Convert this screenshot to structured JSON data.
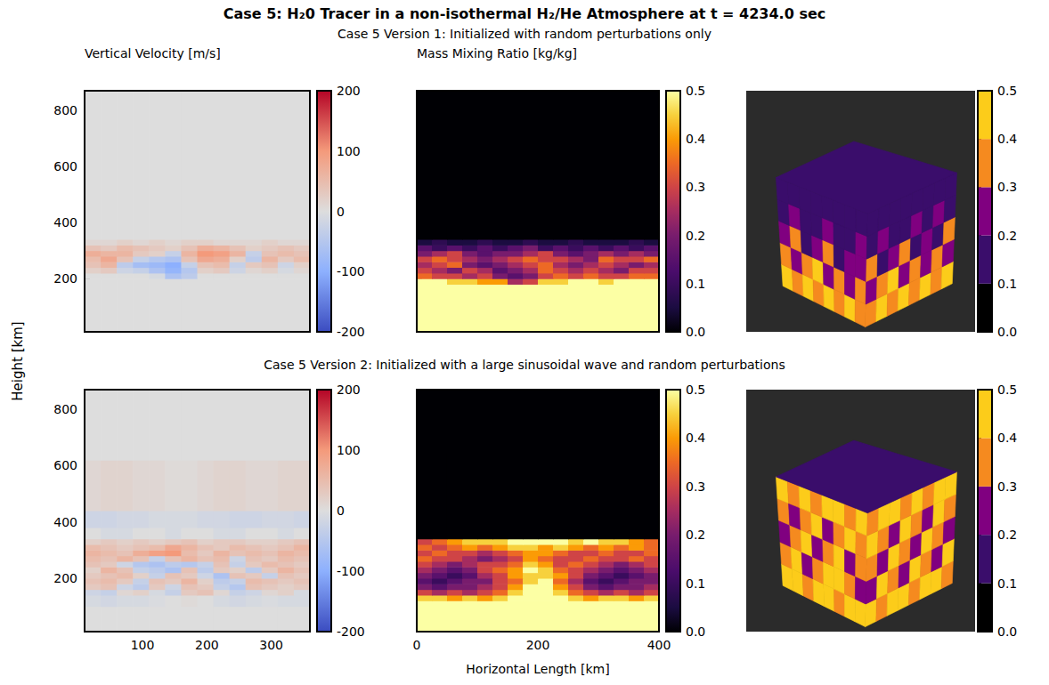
{
  "title": "Case 5: H₂0 Tracer in a non-isothermal H₂/He Atmosphere at t = 4234.0 sec",
  "row_titles": [
    "Case 5 Version 1: Initialized with random perturbations only",
    "Case 5 Version 2: Initialized with a large sinusoidal wave and random perturbations"
  ],
  "x_label": "Horizontal Length [km]",
  "y_label": "Height [km]",
  "chart_data": [
    {
      "type": "heatmap",
      "title": "Vertical Velocity [m/s]",
      "tick_labels": "y",
      "xlim": [
        10,
        360
      ],
      "ylim": [
        10,
        870
      ],
      "xticks": [
        100,
        200,
        300
      ],
      "yticks": [
        200,
        400,
        600,
        800
      ],
      "x_edges": [
        10,
        35,
        60,
        85,
        110,
        135,
        160,
        185,
        210,
        235,
        260,
        285,
        310,
        335,
        360
      ],
      "y_edges": [
        10,
        200,
        220,
        240,
        260,
        280,
        300,
        320,
        340,
        870
      ],
      "cells": [
        [
          0,
          0,
          0,
          0,
          0,
          0,
          0,
          0,
          0,
          0,
          0,
          0,
          0,
          0
        ],
        [
          0,
          0,
          0,
          0,
          -10,
          -60,
          -40,
          0,
          0,
          0,
          0,
          0,
          0,
          0
        ],
        [
          20,
          30,
          -20,
          -30,
          -60,
          -90,
          -50,
          20,
          30,
          -20,
          10,
          20,
          -10,
          10
        ],
        [
          40,
          60,
          -40,
          -70,
          -80,
          -100,
          -30,
          40,
          50,
          -30,
          30,
          40,
          -20,
          20
        ],
        [
          50,
          80,
          40,
          -30,
          -50,
          -60,
          40,
          80,
          70,
          20,
          -40,
          60,
          30,
          50
        ],
        [
          70,
          60,
          60,
          30,
          20,
          -30,
          60,
          100,
          90,
          60,
          -30,
          40,
          50,
          40
        ],
        [
          40,
          30,
          50,
          40,
          30,
          20,
          40,
          70,
          60,
          40,
          20,
          30,
          40,
          30
        ],
        [
          10,
          10,
          20,
          10,
          20,
          10,
          20,
          20,
          10,
          10,
          10,
          20,
          10,
          10
        ],
        [
          0,
          0,
          0,
          0,
          0,
          0,
          0,
          0,
          0,
          0,
          0,
          0,
          0,
          0
        ]
      ],
      "colorbar": {
        "range": [
          -200,
          200
        ],
        "ticks": [
          -200,
          -100,
          0,
          100,
          200
        ],
        "color": "coolwarm"
      }
    },
    {
      "type": "heatmap",
      "title": "Mass Mixing Ratio [kg/kg]",
      "tick_labels": false,
      "xlim": [
        0,
        400
      ],
      "ylim": [
        10,
        870
      ],
      "xticks": [
        0,
        200,
        400
      ],
      "yticks": [
        200,
        400,
        600,
        800
      ],
      "x_edges": [
        0,
        25,
        50,
        75,
        100,
        125,
        150,
        175,
        200,
        225,
        250,
        275,
        300,
        325,
        350,
        375,
        400
      ],
      "y_edges": [
        10,
        180,
        200,
        220,
        240,
        260,
        280,
        300,
        320,
        340,
        870
      ],
      "cells": [
        [
          0.5,
          0.5,
          0.5,
          0.5,
          0.5,
          0.5,
          0.5,
          0.5,
          0.5,
          0.5,
          0.5,
          0.5,
          0.5,
          0.5,
          0.5,
          0.5
        ],
        [
          0.5,
          0.5,
          0.45,
          0.45,
          0.4,
          0.4,
          0.25,
          0.3,
          0.45,
          0.45,
          0.5,
          0.5,
          0.45,
          0.5,
          0.5,
          0.5
        ],
        [
          0.35,
          0.3,
          0.3,
          0.25,
          0.3,
          0.2,
          0.15,
          0.2,
          0.3,
          0.35,
          0.3,
          0.35,
          0.3,
          0.3,
          0.35,
          0.35
        ],
        [
          0.3,
          0.25,
          0.2,
          0.3,
          0.25,
          0.15,
          0.2,
          0.25,
          0.35,
          0.3,
          0.25,
          0.3,
          0.25,
          0.2,
          0.3,
          0.3
        ],
        [
          0.25,
          0.3,
          0.35,
          0.2,
          0.15,
          0.2,
          0.25,
          0.3,
          0.35,
          0.25,
          0.2,
          0.25,
          0.3,
          0.25,
          0.2,
          0.25
        ],
        [
          0.3,
          0.35,
          0.3,
          0.25,
          0.2,
          0.25,
          0.3,
          0.35,
          0.3,
          0.3,
          0.25,
          0.2,
          0.35,
          0.3,
          0.3,
          0.35
        ],
        [
          0.2,
          0.25,
          0.3,
          0.2,
          0.15,
          0.2,
          0.2,
          0.25,
          0.3,
          0.2,
          0.15,
          0.2,
          0.25,
          0.2,
          0.25,
          0.2
        ],
        [
          0.15,
          0.1,
          0.15,
          0.1,
          0.15,
          0.1,
          0.15,
          0.2,
          0.1,
          0.15,
          0.1,
          0.15,
          0.1,
          0.15,
          0.1,
          0.15
        ],
        [
          0.05,
          0.08,
          0.05,
          0.05,
          0.08,
          0.05,
          0.05,
          0.08,
          0.05,
          0.05,
          0.08,
          0.05,
          0.05,
          0.05,
          0.08,
          0.05
        ],
        [
          0,
          0,
          0,
          0,
          0,
          0,
          0,
          0,
          0,
          0,
          0,
          0,
          0,
          0,
          0,
          0
        ]
      ],
      "colorbar": {
        "range": [
          0,
          0.5
        ],
        "ticks": [
          {
            "value": 0,
            "label": "0.0"
          },
          0.1,
          0.2,
          0.3,
          0.4,
          0.5
        ],
        "color": "inferno"
      }
    },
    {
      "type": "volume_render",
      "top_face": 0.15,
      "left_face": [
        [
          0.45,
          0.35,
          0.45,
          0.35,
          0.45,
          0.35,
          0.45,
          0.35
        ],
        [
          0.35,
          0.25,
          0.35,
          0.45,
          0.25,
          0.35,
          0.25,
          0.35
        ],
        [
          0.25,
          0.35,
          0.15,
          0.25,
          0.35,
          0.15,
          0.25,
          0.25
        ],
        [
          0.15,
          0.25,
          0.15,
          0.15,
          0.25,
          0.15,
          0.15,
          0.25
        ],
        [
          0.15,
          0.15,
          0.15,
          0.15,
          0.15,
          0.15,
          0.15,
          0.15
        ]
      ],
      "right_face": [
        [
          0.35,
          0.45,
          0.35,
          0.45,
          0.35,
          0.45,
          0.35,
          0.45
        ],
        [
          0.25,
          0.35,
          0.45,
          0.25,
          0.35,
          0.25,
          0.35,
          0.25
        ],
        [
          0.35,
          0.15,
          0.25,
          0.35,
          0.15,
          0.25,
          0.15,
          0.35
        ],
        [
          0.15,
          0.25,
          0.15,
          0.15,
          0.25,
          0.15,
          0.25,
          0.15
        ],
        [
          0.15,
          0.15,
          0.15,
          0.15,
          0.15,
          0.15,
          0.15,
          0.15
        ]
      ],
      "colorbar": {
        "range": [
          0,
          0.5
        ],
        "ticks": [
          {
            "value": 0,
            "label": "0.0"
          },
          0.1,
          0.2,
          0.3,
          0.4,
          0.5
        ],
        "colors": [
          "#000000",
          "#3a0d6b",
          "#800080",
          "#f58a1f",
          "#fccc1a"
        ]
      }
    },
    {
      "type": "heatmap",
      "tick_labels": true,
      "xlim": [
        10,
        360
      ],
      "ylim": [
        10,
        870
      ],
      "xticks": [
        100,
        200,
        300
      ],
      "yticks": [
        200,
        400,
        600,
        800
      ],
      "x_edges": [
        10,
        35,
        60,
        85,
        110,
        135,
        160,
        185,
        210,
        235,
        260,
        285,
        310,
        335,
        360
      ],
      "y_edges": [
        10,
        100,
        140,
        160,
        180,
        200,
        220,
        240,
        260,
        280,
        300,
        320,
        340,
        380,
        440,
        620,
        870
      ],
      "cells": [
        [
          0,
          0,
          0,
          0,
          0,
          0,
          0,
          0,
          0,
          0,
          0,
          0,
          0,
          0
        ],
        [
          -10,
          -15,
          -10,
          -10,
          -5,
          0,
          5,
          0,
          -10,
          -15,
          -10,
          -5,
          -10,
          -10
        ],
        [
          -20,
          -30,
          10,
          20,
          -10,
          -30,
          30,
          40,
          10,
          -30,
          -20,
          10,
          20,
          -10
        ],
        [
          30,
          40,
          -20,
          -40,
          30,
          -20,
          40,
          30,
          -30,
          -50,
          40,
          30,
          20,
          30
        ],
        [
          40,
          50,
          30,
          -30,
          40,
          30,
          60,
          20,
          -40,
          -30,
          50,
          40,
          30,
          40
        ],
        [
          30,
          40,
          50,
          20,
          -30,
          40,
          30,
          -20,
          -60,
          40,
          30,
          -30,
          40,
          30
        ],
        [
          20,
          60,
          40,
          -30,
          -40,
          -60,
          40,
          -40,
          30,
          20,
          -40,
          30,
          60,
          40
        ],
        [
          40,
          30,
          -20,
          -50,
          -60,
          -40,
          -50,
          -30,
          40,
          -30,
          30,
          50,
          40,
          30
        ],
        [
          50,
          40,
          60,
          40,
          -30,
          40,
          60,
          40,
          50,
          -20,
          40,
          30,
          50,
          40
        ],
        [
          60,
          50,
          40,
          70,
          90,
          100,
          50,
          30,
          60,
          40,
          50,
          40,
          60,
          50
        ],
        [
          50,
          40,
          30,
          40,
          50,
          80,
          60,
          40,
          30,
          50,
          40,
          30,
          40,
          60
        ],
        [
          20,
          30,
          20,
          30,
          20,
          30,
          40,
          20,
          30,
          30,
          20,
          20,
          30,
          40
        ],
        [
          0,
          -10,
          -10,
          0,
          0,
          -10,
          0,
          0,
          -10,
          -10,
          0,
          0,
          -10,
          0
        ],
        [
          -20,
          -20,
          -15,
          -15,
          -10,
          -10,
          -10,
          -15,
          -15,
          -20,
          -20,
          -15,
          -15,
          -20
        ],
        [
          10,
          15,
          15,
          10,
          10,
          5,
          5,
          10,
          15,
          15,
          10,
          10,
          15,
          15
        ],
        [
          0,
          0,
          0,
          0,
          0,
          0,
          0,
          0,
          0,
          0,
          0,
          0,
          0,
          0
        ]
      ],
      "colorbar": {
        "range": [
          -200,
          200
        ],
        "ticks": [
          -200,
          -100,
          0,
          100,
          200
        ],
        "color": "coolwarm"
      }
    },
    {
      "type": "heatmap",
      "tick_labels": "x",
      "xlim": [
        0,
        400
      ],
      "ylim": [
        10,
        870
      ],
      "xticks": [
        0,
        200,
        400
      ],
      "yticks": [
        200,
        400,
        600,
        800
      ],
      "x_edges": [
        0,
        25,
        50,
        75,
        100,
        125,
        150,
        175,
        200,
        225,
        250,
        275,
        300,
        325,
        350,
        375,
        400
      ],
      "y_edges": [
        10,
        120,
        140,
        160,
        180,
        200,
        220,
        240,
        260,
        280,
        300,
        320,
        340,
        870
      ],
      "cells": [
        [
          0.5,
          0.5,
          0.5,
          0.5,
          0.5,
          0.5,
          0.5,
          0.5,
          0.5,
          0.5,
          0.5,
          0.5,
          0.5,
          0.5,
          0.5,
          0.5
        ],
        [
          0.45,
          0.45,
          0.4,
          0.45,
          0.4,
          0.45,
          0.5,
          0.5,
          0.5,
          0.5,
          0.45,
          0.4,
          0.45,
          0.45,
          0.4,
          0.45
        ],
        [
          0.3,
          0.25,
          0.3,
          0.25,
          0.3,
          0.35,
          0.45,
          0.5,
          0.5,
          0.45,
          0.35,
          0.3,
          0.25,
          0.3,
          0.25,
          0.3
        ],
        [
          0.2,
          0.15,
          0.2,
          0.2,
          0.25,
          0.3,
          0.4,
          0.5,
          0.5,
          0.4,
          0.3,
          0.2,
          0.15,
          0.2,
          0.2,
          0.25
        ],
        [
          0.15,
          0.1,
          0.15,
          0.2,
          0.2,
          0.3,
          0.35,
          0.45,
          0.5,
          0.35,
          0.25,
          0.15,
          0.1,
          0.15,
          0.2,
          0.2
        ],
        [
          0.2,
          0.15,
          0.1,
          0.15,
          0.25,
          0.3,
          0.4,
          0.45,
          0.45,
          0.4,
          0.3,
          0.2,
          0.15,
          0.1,
          0.15,
          0.2
        ],
        [
          0.25,
          0.2,
          0.15,
          0.2,
          0.3,
          0.35,
          0.4,
          0.5,
          0.45,
          0.35,
          0.3,
          0.25,
          0.2,
          0.15,
          0.2,
          0.25
        ],
        [
          0.3,
          0.25,
          0.2,
          0.25,
          0.3,
          0.3,
          0.35,
          0.45,
          0.4,
          0.3,
          0.35,
          0.3,
          0.25,
          0.2,
          0.25,
          0.3
        ],
        [
          0.35,
          0.3,
          0.3,
          0.25,
          0.2,
          0.25,
          0.3,
          0.4,
          0.35,
          0.3,
          0.3,
          0.35,
          0.3,
          0.3,
          0.35,
          0.3
        ],
        [
          0.3,
          0.35,
          0.3,
          0.3,
          0.25,
          0.3,
          0.35,
          0.4,
          0.4,
          0.35,
          0.3,
          0.3,
          0.35,
          0.3,
          0.3,
          0.35
        ],
        [
          0.35,
          0.3,
          0.35,
          0.4,
          0.35,
          0.4,
          0.45,
          0.45,
          0.4,
          0.45,
          0.4,
          0.35,
          0.4,
          0.35,
          0.4,
          0.35
        ],
        [
          0.3,
          0.35,
          0.4,
          0.45,
          0.45,
          0.45,
          0.5,
          0.5,
          0.5,
          0.5,
          0.45,
          0.5,
          0.45,
          0.45,
          0.4,
          0.35
        ],
        [
          0,
          0,
          0,
          0,
          0,
          0,
          0,
          0,
          0,
          0,
          0,
          0,
          0,
          0,
          0,
          0
        ]
      ],
      "colorbar": {
        "range": [
          0,
          0.5
        ],
        "ticks": [
          {
            "value": 0,
            "label": "0.0"
          },
          0.1,
          0.2,
          0.3,
          0.4,
          0.5
        ],
        "color": "inferno"
      }
    },
    {
      "type": "volume_render",
      "top_face": 0.15,
      "left_face": [
        [
          0.45,
          0.45,
          0.35,
          0.45,
          0.45,
          0.35,
          0.45,
          0.45
        ],
        [
          0.35,
          0.45,
          0.25,
          0.35,
          0.45,
          0.45,
          0.35,
          0.25
        ],
        [
          0.25,
          0.35,
          0.45,
          0.25,
          0.35,
          0.45,
          0.25,
          0.35
        ],
        [
          0.35,
          0.25,
          0.35,
          0.45,
          0.25,
          0.35,
          0.45,
          0.35
        ],
        [
          0.45,
          0.35,
          0.45,
          0.35,
          0.45,
          0.45,
          0.35,
          0.45
        ]
      ],
      "right_face": [
        [
          0.45,
          0.35,
          0.45,
          0.45,
          0.35,
          0.45,
          0.45,
          0.35
        ],
        [
          0.25,
          0.45,
          0.35,
          0.25,
          0.45,
          0.35,
          0.25,
          0.45
        ],
        [
          0.35,
          0.25,
          0.45,
          0.35,
          0.25,
          0.45,
          0.35,
          0.25
        ],
        [
          0.45,
          0.35,
          0.25,
          0.45,
          0.35,
          0.25,
          0.45,
          0.35
        ],
        [
          0.35,
          0.45,
          0.45,
          0.35,
          0.45,
          0.35,
          0.45,
          0.45
        ]
      ],
      "colorbar": {
        "range": [
          0,
          0.5
        ],
        "ticks": [
          {
            "value": 0,
            "label": "0.0"
          },
          0.1,
          0.2,
          0.3,
          0.4,
          0.5
        ],
        "colors": [
          "#000000",
          "#3a0d6b",
          "#800080",
          "#f58a1f",
          "#fccc1a"
        ]
      }
    }
  ]
}
